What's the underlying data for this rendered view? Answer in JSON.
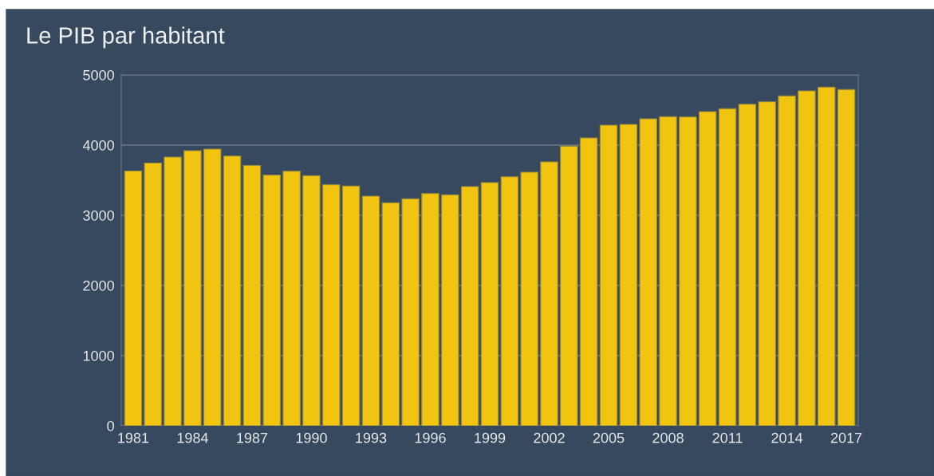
{
  "chart_data": {
    "type": "bar",
    "title": "Le PIB par habitant",
    "categories": [
      "1981",
      null,
      null,
      "1984",
      null,
      null,
      "1987",
      null,
      null,
      "1990",
      null,
      null,
      "1993",
      null,
      null,
      "1996",
      null,
      null,
      "1999",
      null,
      null,
      "2002",
      null,
      null,
      "2005",
      null,
      null,
      "2008",
      null,
      null,
      "2011",
      null,
      null,
      "2014",
      null,
      null,
      "2017"
    ],
    "values": [
      3630,
      3745,
      3830,
      3920,
      3943,
      3844,
      3711,
      3572,
      3628,
      3564,
      3435,
      3416,
      3273,
      3177,
      3234,
      3310,
      3291,
      3409,
      3466,
      3549,
      3614,
      3761,
      3984,
      4102,
      4284,
      4295,
      4375,
      4405,
      4401,
      4477,
      4518,
      4583,
      4617,
      4700,
      4773,
      4825,
      4791
    ],
    "color": "#f1c40f",
    "ylim": [
      0,
      5000
    ],
    "yticks": [
      0,
      1000,
      2000,
      3000,
      4000,
      5000
    ],
    "grid": "y"
  }
}
